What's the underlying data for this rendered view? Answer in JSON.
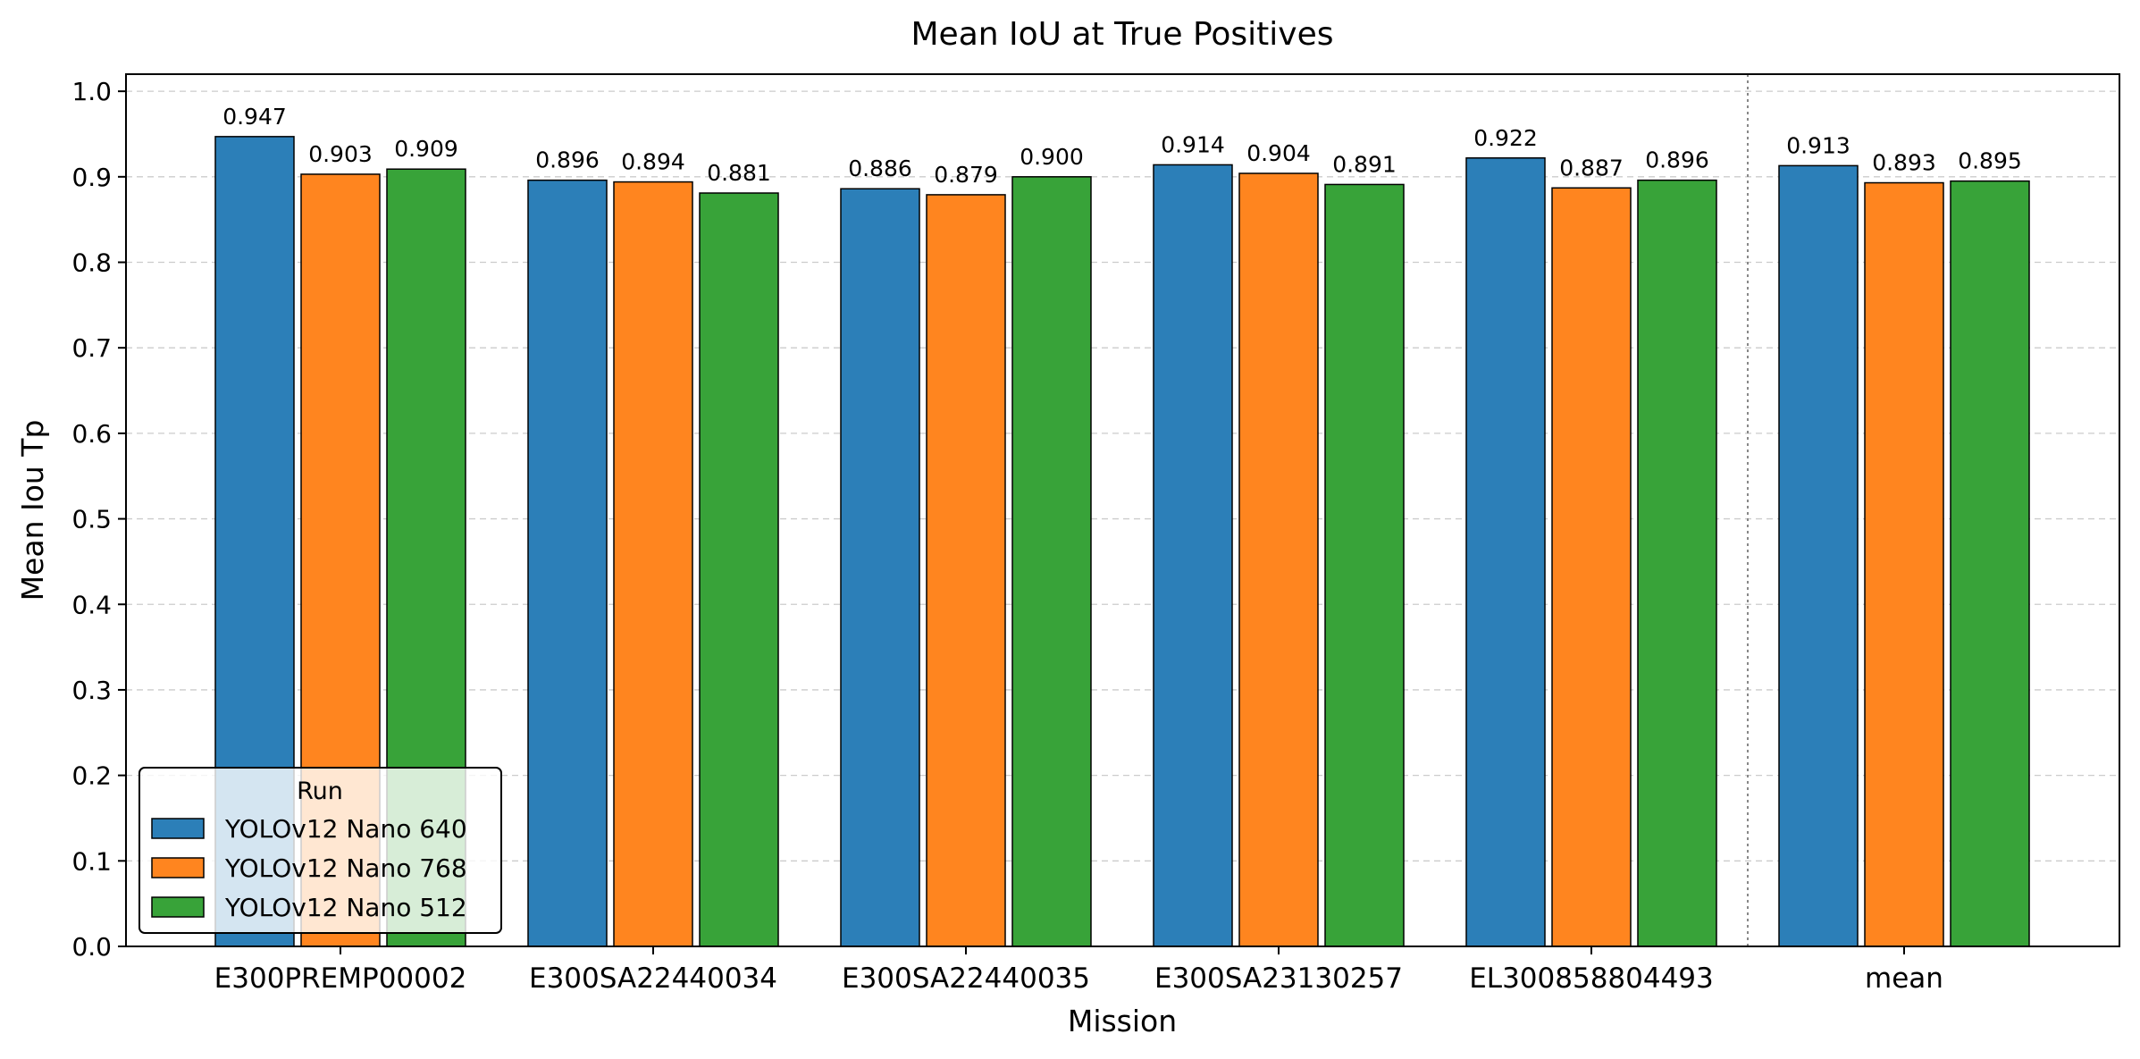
{
  "chart_data": {
    "type": "bar",
    "title": "Mean IoU at True Positives",
    "xlabel": "Mission",
    "ylabel": "Mean Iou Tp",
    "categories": [
      "E300PREMP00002",
      "E300SA22440034",
      "E300SA22440035",
      "E300SA23130257",
      "EL300858804493",
      "mean"
    ],
    "series": [
      {
        "name": "YOLOv12 Nano 640",
        "color": "#2c7fb8",
        "values": [
          0.947,
          0.896,
          0.886,
          0.914,
          0.922,
          0.913
        ],
        "labels": [
          "0.947",
          "0.896",
          "0.886",
          "0.914",
          "0.922",
          "0.913"
        ]
      },
      {
        "name": "YOLOv12 Nano 768",
        "color": "#ff851f",
        "values": [
          0.903,
          0.894,
          0.879,
          0.904,
          0.887,
          0.893
        ],
        "labels": [
          "0.903",
          "0.894",
          "0.879",
          "0.904",
          "0.887",
          "0.893"
        ]
      },
      {
        "name": "YOLOv12 Nano 512",
        "color": "#38a339",
        "values": [
          0.909,
          0.881,
          0.9,
          0.891,
          0.896,
          0.895
        ],
        "labels": [
          "0.909",
          "0.881",
          "0.900",
          "0.891",
          "0.896",
          "0.895"
        ]
      }
    ],
    "ylim": [
      0.0,
      1.02
    ],
    "yticks": [
      0.0,
      0.1,
      0.2,
      0.3,
      0.4,
      0.5,
      0.6,
      0.7,
      0.8,
      0.9,
      1.0
    ],
    "ytick_labels": [
      "0.0",
      "0.1",
      "0.2",
      "0.3",
      "0.4",
      "0.5",
      "0.6",
      "0.7",
      "0.8",
      "0.9",
      "1.0"
    ],
    "grid": "y-dashed",
    "separator_before_category": "mean",
    "legend": {
      "title": "Run",
      "placement": "lower-left"
    }
  }
}
